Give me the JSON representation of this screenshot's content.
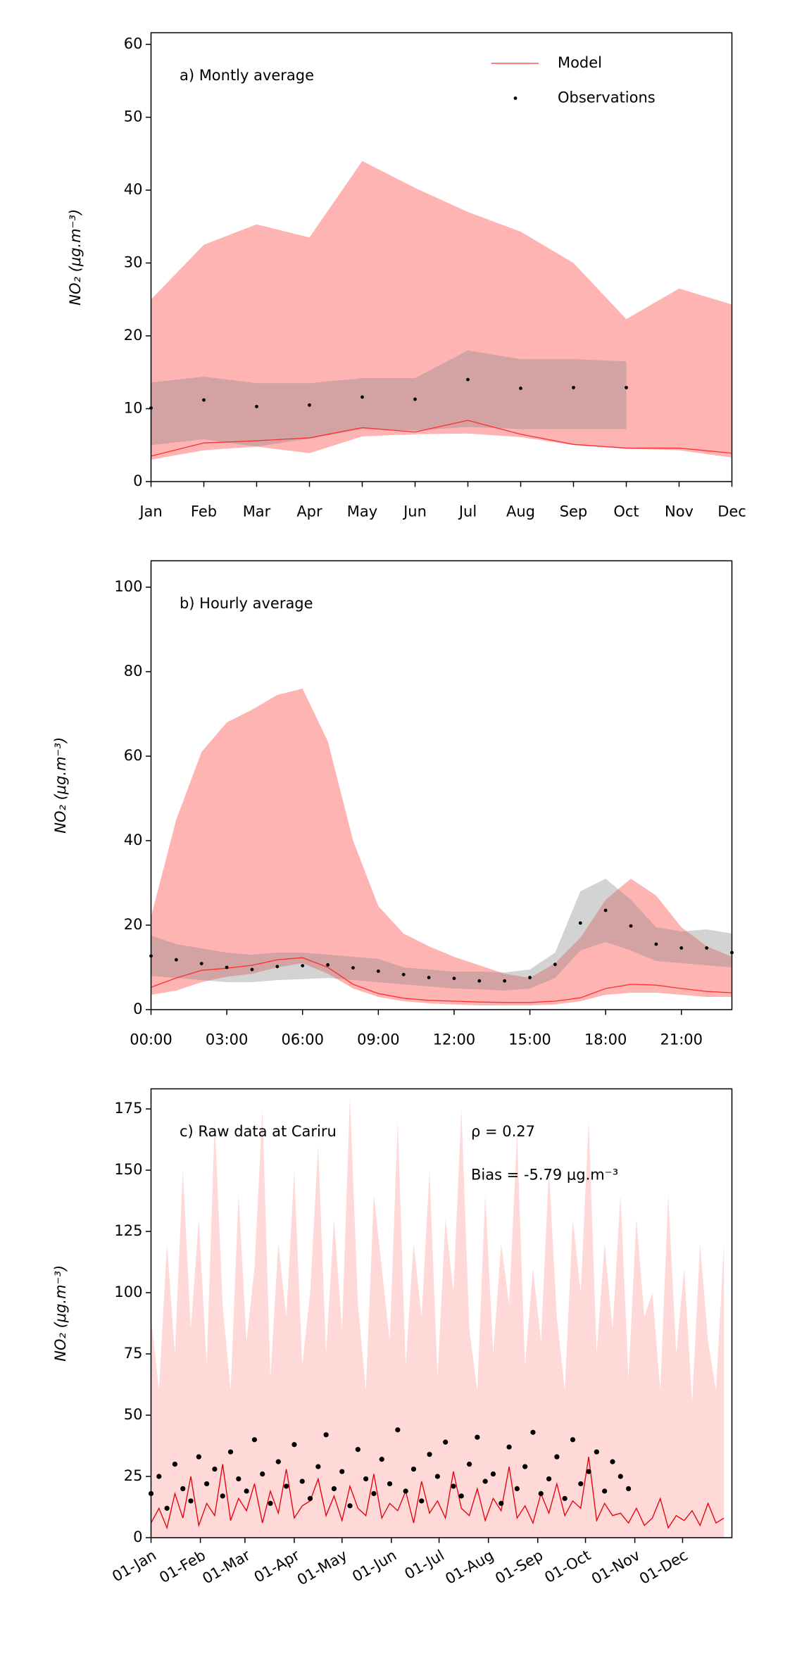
{
  "chart_data": [
    {
      "type": "line",
      "title": "a) Montly average",
      "ylabel": "NO₂ (μg.m⁻³)",
      "legend": "upper right",
      "categories": [
        "Jan",
        "Feb",
        "Mar",
        "Apr",
        "May",
        "Jun",
        "Jul",
        "Aug",
        "Sep",
        "Oct",
        "Nov",
        "Dec"
      ],
      "ylim": [
        0,
        61.6
      ],
      "yticks": [
        0,
        10,
        20,
        30,
        40,
        50,
        60
      ],
      "series": [
        {
          "name": "Model",
          "color": "#ff3030",
          "style": "line",
          "band_color": "#ffb0b0",
          "values": [
            3.5,
            5.3,
            5.6,
            6,
            7.4,
            6.8,
            8.4,
            6.5,
            5.1,
            4.6,
            4.6,
            3.9
          ],
          "band_upper": [
            25,
            32.5,
            35.3,
            33.5,
            44,
            40.3,
            37,
            34.3,
            30,
            22.3,
            26.5,
            24.3
          ],
          "band_lower": [
            3,
            4.3,
            4.8,
            3.9,
            6.2,
            6.5,
            6.6,
            6.1,
            5,
            4.5,
            4.3,
            3.3
          ]
        },
        {
          "name": "Observations",
          "color": "#000000",
          "style": "markers",
          "band_color": "#808080",
          "values": [
            10.1,
            11.2,
            10.3,
            10.5,
            11.6,
            11.3,
            14,
            12.8,
            12.9,
            12.9,
            null,
            null
          ],
          "band_upper": [
            13.6,
            14.4,
            13.5,
            13.5,
            14.2,
            14.2,
            18,
            16.8,
            16.8,
            16.5,
            null,
            null
          ],
          "band_lower": [
            5,
            5.8,
            4.8,
            5.9,
            7.2,
            7,
            7.5,
            7.2,
            7.2,
            7.2,
            null,
            null
          ]
        }
      ]
    },
    {
      "type": "line",
      "title": "b) Hourly average",
      "ylabel": "NO₂ (μg.m⁻³)",
      "x": [
        0,
        1,
        2,
        3,
        4,
        5,
        6,
        7,
        8,
        9,
        10,
        11,
        12,
        13,
        14,
        15,
        16,
        17,
        18,
        19,
        20,
        21,
        22,
        23
      ],
      "xlim": [
        0,
        23
      ],
      "xticks": [
        {
          "value": 0,
          "label": "00:00"
        },
        {
          "value": 3,
          "label": "03:00"
        },
        {
          "value": 6,
          "label": "06:00"
        },
        {
          "value": 9,
          "label": "09:00"
        },
        {
          "value": 12,
          "label": "12:00"
        },
        {
          "value": 15,
          "label": "15:00"
        },
        {
          "value": 18,
          "label": "18:00"
        },
        {
          "value": 21,
          "label": "21:00"
        }
      ],
      "ylim": [
        0,
        106.25
      ],
      "yticks": [
        0,
        20,
        40,
        60,
        80,
        100
      ],
      "series": [
        {
          "color": "#ff3030",
          "style": "line",
          "band_color": "#ffb0b0",
          "values": [
            5.3,
            7.5,
            9.3,
            9.8,
            10.5,
            11.8,
            12.3,
            10,
            6,
            3.8,
            2.7,
            2.2,
            2,
            1.8,
            1.7,
            1.7,
            2,
            2.8,
            5,
            6,
            5.8,
            5,
            4.3,
            4
          ],
          "band_upper": [
            22,
            45,
            61,
            68,
            71,
            74.5,
            76,
            63.5,
            40,
            24.5,
            18,
            15,
            12.5,
            10.5,
            8.5,
            7.5,
            11,
            17,
            26,
            31,
            27,
            19.5,
            15,
            12.5
          ],
          "band_lower": [
            3.5,
            4.5,
            6.5,
            7.8,
            8.5,
            10,
            11,
            8.5,
            5,
            3,
            2,
            1.5,
            1.2,
            1,
            1,
            1,
            1.2,
            2,
            3.5,
            4,
            4,
            3.5,
            3,
            3
          ]
        },
        {
          "color": "#000000",
          "style": "markers",
          "band_color": "#808080",
          "values": [
            12.7,
            11.8,
            10.9,
            10,
            9.5,
            10.2,
            10.4,
            10.6,
            9.9,
            9.1,
            8.3,
            7.6,
            7.4,
            6.8,
            6.8,
            7.6,
            10.7,
            20.5,
            23.5,
            19.8,
            15.5,
            14.6,
            14.6,
            13.5
          ],
          "band_upper": [
            17.5,
            15.5,
            14.5,
            13.5,
            13,
            13.5,
            13.5,
            13,
            12.5,
            12,
            10,
            9.5,
            9,
            9,
            8.8,
            9.5,
            13.5,
            28,
            31,
            26,
            19.5,
            18.5,
            19,
            18
          ],
          "band_lower": [
            8,
            7.5,
            7,
            6.5,
            6.5,
            7,
            7.2,
            7.5,
            7,
            6.5,
            6,
            5.5,
            5,
            4.8,
            4.5,
            5,
            7.5,
            14,
            16,
            14,
            11.5,
            11,
            10.5,
            10
          ]
        }
      ]
    },
    {
      "type": "line",
      "title": "c) Raw data at Cariru",
      "ylabel": "NO₂ (μg.m⁻³)",
      "annotations": [
        "ρ = 0.27",
        "Bias = -5.79 μg.m⁻³"
      ],
      "xlim": [
        0,
        365
      ],
      "xtick_rotation": 30,
      "xticks": [
        {
          "value": 0,
          "label": "01-Jan"
        },
        {
          "value": 31,
          "label": "01-Feb"
        },
        {
          "value": 59,
          "label": "01-Mar"
        },
        {
          "value": 90,
          "label": "01-Apr"
        },
        {
          "value": 120,
          "label": "01-May"
        },
        {
          "value": 151,
          "label": "01-Jun"
        },
        {
          "value": 181,
          "label": "01-Jul"
        },
        {
          "value": 212,
          "label": "01-Aug"
        },
        {
          "value": 243,
          "label": "01-Sep"
        },
        {
          "value": 273,
          "label": "01-Oct"
        },
        {
          "value": 304,
          "label": "01-Nov"
        },
        {
          "value": 334,
          "label": "01-Dec"
        }
      ],
      "ylim": [
        0,
        183.2
      ],
      "yticks": [
        0,
        25,
        50,
        75,
        100,
        125,
        150,
        175
      ],
      "series": [
        {
          "color": "#e8000b",
          "style": "line",
          "band_color": "#ffd6d6",
          "x": [
            0,
            5,
            10,
            15,
            20,
            25,
            30,
            35,
            40,
            45,
            50,
            55,
            60,
            65,
            70,
            75,
            80,
            85,
            90,
            95,
            100,
            105,
            110,
            115,
            120,
            125,
            130,
            135,
            140,
            145,
            150,
            155,
            160,
            165,
            170,
            175,
            180,
            185,
            190,
            195,
            200,
            205,
            210,
            215,
            220,
            225,
            230,
            235,
            240,
            245,
            250,
            255,
            260,
            265,
            270,
            275,
            280,
            285,
            290,
            295,
            300,
            305,
            310,
            315,
            320,
            325,
            330,
            335,
            340,
            345,
            350,
            355,
            360
          ],
          "values": [
            6,
            12,
            4,
            18,
            8,
            25,
            5,
            14,
            9,
            30,
            7,
            16,
            11,
            22,
            6,
            19,
            10,
            28,
            8,
            13,
            15,
            24,
            9,
            17,
            7,
            21,
            12,
            9,
            26,
            8,
            14,
            11,
            19,
            6,
            23,
            10,
            15,
            8,
            27,
            12,
            9,
            20,
            7,
            16,
            11,
            29,
            8,
            13,
            6,
            18,
            10,
            22,
            9,
            15,
            12,
            33,
            7,
            14,
            9,
            10,
            6,
            12,
            5,
            8,
            16,
            4,
            9,
            7,
            11,
            5,
            14,
            6,
            8
          ],
          "band_upper": [
            90,
            60,
            120,
            75,
            150,
            85,
            130,
            70,
            170,
            95,
            60,
            140,
            80,
            110,
            175,
            65,
            120,
            90,
            150,
            70,
            100,
            160,
            75,
            130,
            85,
            180,
            95,
            60,
            140,
            110,
            80,
            170,
            70,
            120,
            90,
            150,
            65,
            130,
            100,
            175,
            85,
            60,
            140,
            75,
            120,
            95,
            165,
            70,
            110,
            80,
            150,
            90,
            60,
            130,
            100,
            170,
            75,
            120,
            85,
            140,
            65,
            130,
            90,
            100,
            60,
            140,
            75,
            110,
            55,
            120,
            80,
            60,
            120
          ]
        },
        {
          "color": "#000000",
          "style": "markers",
          "x": [
            0,
            5,
            10,
            15,
            20,
            25,
            30,
            35,
            40,
            45,
            50,
            55,
            60,
            65,
            70,
            75,
            80,
            85,
            90,
            95,
            100,
            105,
            110,
            115,
            120,
            125,
            130,
            135,
            140,
            145,
            150,
            155,
            160,
            165,
            170,
            175,
            180,
            185,
            190,
            195,
            200,
            205,
            210,
            215,
            220,
            225,
            230,
            235,
            240,
            245,
            250,
            255,
            260,
            265,
            270,
            275,
            280,
            285,
            290,
            295,
            300
          ],
          "values": [
            18,
            25,
            12,
            30,
            20,
            15,
            33,
            22,
            28,
            17,
            35,
            24,
            19,
            40,
            26,
            14,
            31,
            21,
            38,
            23,
            16,
            29,
            42,
            20,
            27,
            13,
            36,
            24,
            18,
            32,
            22,
            44,
            19,
            28,
            15,
            34,
            25,
            39,
            21,
            17,
            30,
            41,
            23,
            26,
            14,
            37,
            20,
            29,
            43,
            18,
            24,
            33,
            16,
            40,
            22,
            27,
            35,
            19,
            31,
            25,
            20
          ]
        }
      ]
    }
  ]
}
